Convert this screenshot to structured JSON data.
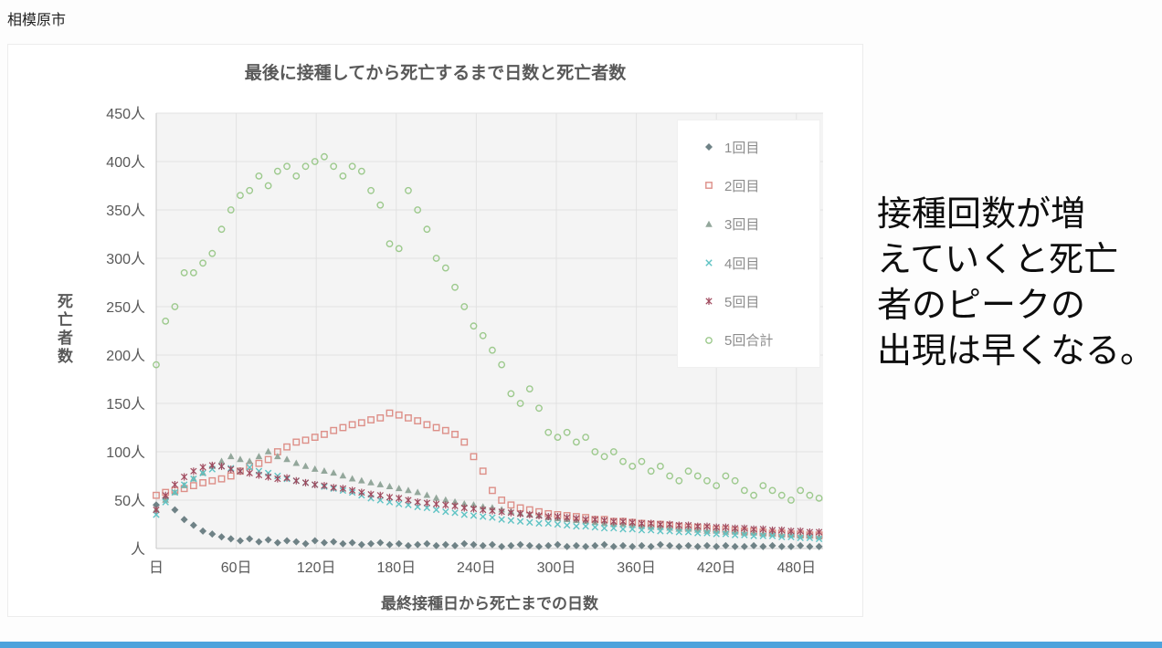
{
  "page": {
    "city_label": "相模原市",
    "caption": "接種回数が増\nえていくと死亡\n者のピークの\n出現は早くなる。",
    "bottom_bar_color": "#4da3dc"
  },
  "chart_data": {
    "type": "scatter",
    "title": "最後に接種してから死亡するまで日数と死亡者数",
    "xlabel": "最終接種日から死亡までの日数",
    "ylabel": "死亡者数",
    "xlim": [
      0,
      500
    ],
    "ylim": [
      0,
      450
    ],
    "grid": true,
    "legend_position": "upper-right-inside",
    "x_ticks": {
      "values": [
        0,
        60,
        120,
        180,
        240,
        300,
        360,
        420,
        480
      ],
      "labels": [
        "日",
        "60日",
        "120日",
        "180日",
        "240日",
        "300日",
        "360日",
        "420日",
        "480日"
      ]
    },
    "y_ticks": {
      "values": [
        450,
        400,
        350,
        300,
        250,
        200,
        150,
        100,
        50,
        0
      ],
      "labels": [
        "450人",
        "400人",
        "350人",
        "300人",
        "250人",
        "200人",
        "150人",
        "100人",
        "50人",
        "人"
      ]
    },
    "x_unit": "days-since-last-dose (weekly bins)",
    "x": [
      0,
      7,
      14,
      21,
      28,
      35,
      42,
      49,
      56,
      63,
      70,
      77,
      84,
      91,
      98,
      105,
      112,
      119,
      126,
      133,
      140,
      147,
      154,
      161,
      168,
      175,
      182,
      189,
      196,
      203,
      210,
      217,
      224,
      231,
      238,
      245,
      252,
      259,
      266,
      273,
      280,
      287,
      294,
      301,
      308,
      315,
      322,
      329,
      336,
      343,
      350,
      357,
      364,
      371,
      378,
      385,
      392,
      399,
      406,
      413,
      420,
      427,
      434,
      441,
      448,
      455,
      462,
      469,
      476,
      483,
      490,
      497
    ],
    "series": [
      {
        "name": "1回目",
        "marker": "diamond",
        "color": "#6f8286",
        "values": [
          45,
          52,
          40,
          30,
          24,
          18,
          15,
          12,
          10,
          8,
          10,
          7,
          9,
          6,
          8,
          7,
          5,
          8,
          6,
          7,
          5,
          6,
          4,
          5,
          6,
          4,
          5,
          3,
          4,
          5,
          3,
          4,
          3,
          5,
          4,
          3,
          4,
          2,
          3,
          4,
          3,
          2,
          3,
          4,
          2,
          3,
          2,
          3,
          4,
          2,
          3,
          2,
          3,
          2,
          4,
          3,
          2,
          3,
          2,
          3,
          2,
          3,
          2,
          2,
          3,
          2,
          3,
          2,
          2,
          3,
          2,
          2
        ]
      },
      {
        "name": "2回目",
        "marker": "square",
        "color": "#dd8f88",
        "values": [
          55,
          58,
          60,
          62,
          65,
          68,
          70,
          72,
          75,
          80,
          85,
          88,
          92,
          100,
          105,
          110,
          112,
          115,
          118,
          122,
          125,
          128,
          130,
          133,
          135,
          140,
          138,
          135,
          132,
          128,
          125,
          122,
          118,
          110,
          95,
          80,
          60,
          50,
          45,
          42,
          40,
          38,
          36,
          35,
          34,
          33,
          32,
          30,
          30,
          28,
          28,
          27,
          26,
          25,
          25,
          24,
          23,
          22,
          22,
          21,
          20,
          20,
          19,
          18,
          18,
          17,
          16,
          16,
          15,
          15,
          14,
          14
        ]
      },
      {
        "name": "3回目",
        "marker": "triangle",
        "color": "#93a79b",
        "values": [
          40,
          50,
          58,
          65,
          72,
          78,
          85,
          90,
          95,
          92,
          90,
          95,
          100,
          95,
          92,
          88,
          85,
          82,
          80,
          78,
          75,
          72,
          70,
          68,
          66,
          64,
          62,
          60,
          58,
          55,
          52,
          50,
          48,
          46,
          45,
          43,
          42,
          40,
          38,
          36,
          35,
          34,
          32,
          31,
          30,
          29,
          28,
          27,
          26,
          25,
          25,
          24,
          23,
          22,
          22,
          21,
          20,
          20,
          19,
          18,
          18,
          17,
          17,
          16,
          16,
          15,
          15,
          14,
          14,
          13,
          13,
          12
        ]
      },
      {
        "name": "4回目",
        "marker": "x",
        "color": "#5fc3c4",
        "values": [
          35,
          48,
          58,
          66,
          72,
          78,
          82,
          85,
          83,
          80,
          84,
          80,
          78,
          75,
          72,
          70,
          68,
          66,
          64,
          62,
          60,
          58,
          55,
          52,
          50,
          48,
          46,
          45,
          43,
          42,
          40,
          38,
          37,
          35,
          34,
          33,
          32,
          30,
          29,
          28,
          27,
          26,
          26,
          25,
          24,
          23,
          23,
          22,
          21,
          21,
          20,
          20,
          19,
          19,
          18,
          18,
          17,
          17,
          16,
          16,
          15,
          15,
          14,
          14,
          13,
          13,
          13,
          12,
          12,
          11,
          11,
          10
        ]
      },
      {
        "name": "5回目",
        "marker": "asterisk",
        "color": "#a04a5e",
        "values": [
          40,
          55,
          66,
          74,
          80,
          84,
          86,
          85,
          82,
          80,
          78,
          76,
          74,
          72,
          73,
          70,
          68,
          66,
          65,
          63,
          62,
          60,
          58,
          56,
          55,
          53,
          52,
          50,
          48,
          47,
          46,
          45,
          44,
          42,
          41,
          40,
          39,
          38,
          37,
          36,
          35,
          34,
          33,
          33,
          32,
          31,
          30,
          30,
          29,
          28,
          28,
          27,
          26,
          26,
          25,
          25,
          24,
          24,
          23,
          23,
          22,
          22,
          21,
          21,
          20,
          20,
          19,
          19,
          18,
          18,
          17,
          17
        ]
      },
      {
        "name": "5回合計",
        "marker": "circle",
        "color": "#9cc98c",
        "values": [
          190,
          235,
          250,
          285,
          285,
          295,
          305,
          330,
          350,
          365,
          370,
          385,
          375,
          390,
          395,
          385,
          395,
          400,
          405,
          395,
          385,
          395,
          390,
          370,
          355,
          315,
          310,
          370,
          350,
          330,
          300,
          290,
          270,
          250,
          230,
          220,
          205,
          190,
          160,
          150,
          165,
          145,
          120,
          115,
          120,
          110,
          115,
          100,
          95,
          100,
          90,
          85,
          90,
          80,
          85,
          75,
          70,
          80,
          75,
          70,
          65,
          75,
          70,
          60,
          55,
          65,
          60,
          55,
          50,
          60,
          55,
          52
        ]
      }
    ]
  }
}
